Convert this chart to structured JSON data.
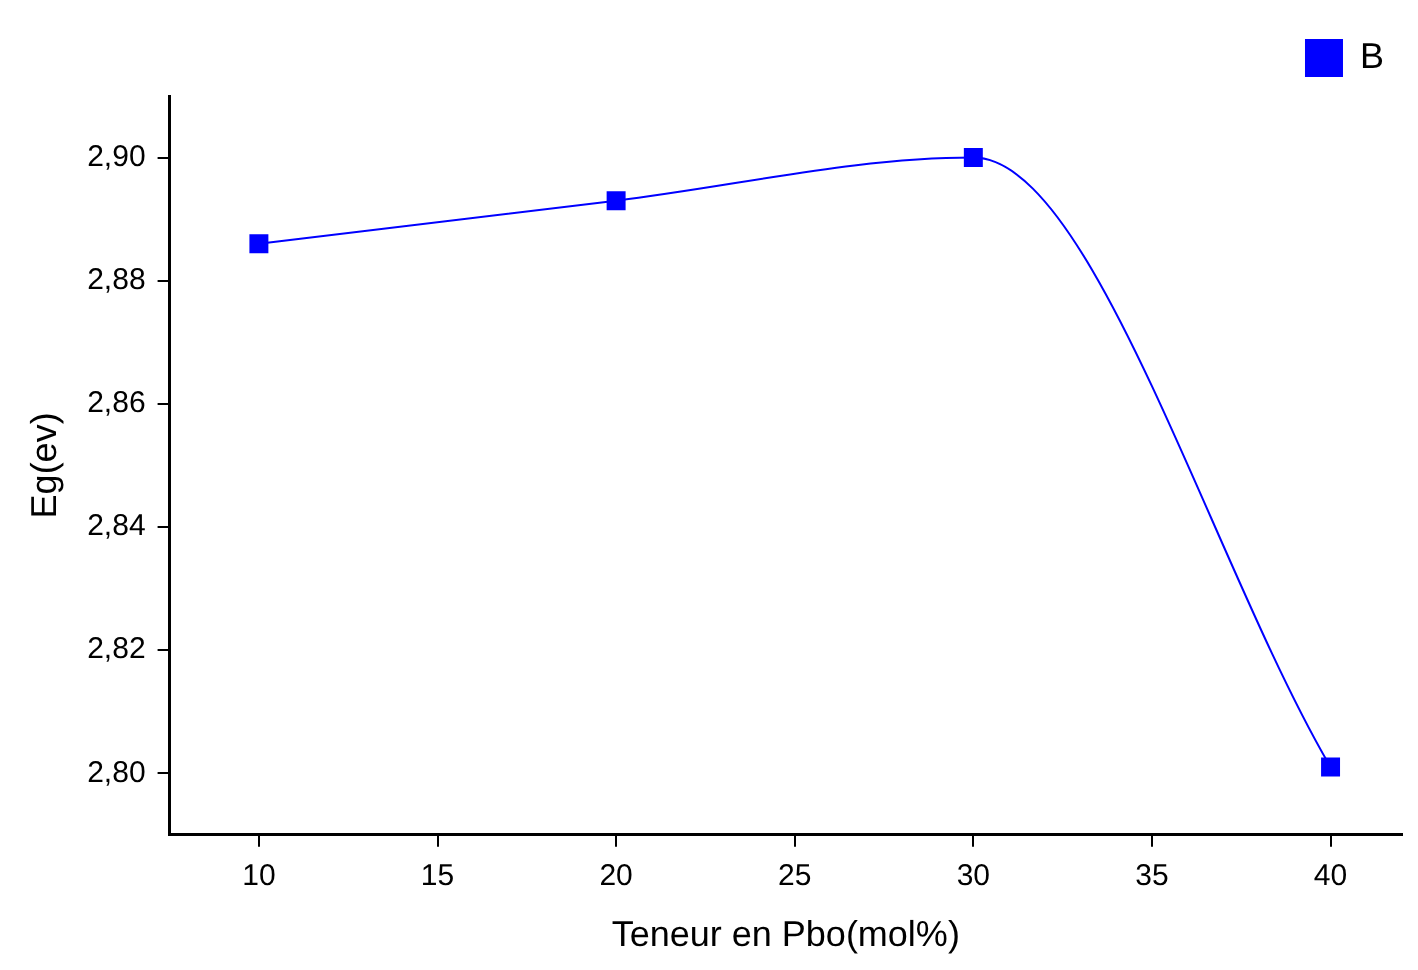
{
  "chart_data": {
    "type": "line",
    "xlabel": "Teneur en Pbo(mol%)",
    "ylabel": "Eg(ev)",
    "x": [
      10,
      20,
      30,
      40
    ],
    "series": [
      {
        "name": "B",
        "color": "#0000ff",
        "values": [
          2.886,
          2.893,
          2.9,
          2.801
        ]
      }
    ],
    "xlim": [
      7.5,
      42
    ],
    "xticks": [
      10,
      15,
      20,
      25,
      30,
      35,
      40
    ],
    "ylim": [
      2.79,
      2.91
    ],
    "yticks": [
      {
        "value": 2.8,
        "label": "2,80"
      },
      {
        "value": 2.82,
        "label": "2,82"
      },
      {
        "value": 2.84,
        "label": "2,84"
      },
      {
        "value": 2.86,
        "label": "2,86"
      },
      {
        "value": 2.88,
        "label": "2,88"
      },
      {
        "value": 2.9,
        "label": "2,90"
      }
    ],
    "grid": false,
    "legend": "top right",
    "marker": "square",
    "line_style": "solid"
  }
}
